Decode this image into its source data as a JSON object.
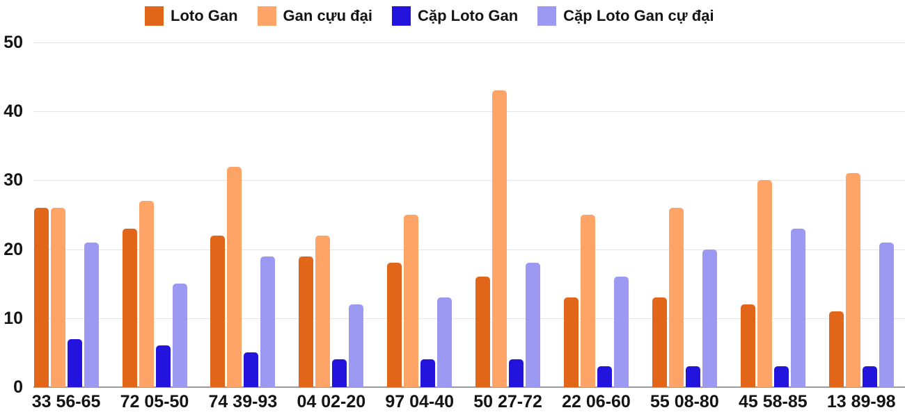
{
  "chart_data": {
    "type": "bar",
    "title": "",
    "xlabel": "",
    "ylabel": "",
    "ylim": [
      0,
      50
    ],
    "yticks": [
      0,
      10,
      20,
      30,
      40,
      50
    ],
    "grid": true,
    "legend_position": "top",
    "categories": [
      "33 56-65",
      "72 05-50",
      "74 39-93",
      "04 02-20",
      "97 04-40",
      "50 27-72",
      "22 06-60",
      "55 08-80",
      "45 58-85",
      "13 89-98"
    ],
    "series": [
      {
        "name": "Loto Gan",
        "color": "#e2661a",
        "values": [
          26,
          23,
          22,
          19,
          18,
          16,
          13,
          13,
          12,
          11
        ]
      },
      {
        "name": "Gan cựu đại",
        "color": "#fda466",
        "values": [
          26,
          27,
          32,
          22,
          25,
          43,
          25,
          26,
          30,
          31
        ]
      },
      {
        "name": "Cặp Loto Gan",
        "color": "#2213dd",
        "values": [
          7,
          6,
          5,
          4,
          4,
          4,
          3,
          3,
          3,
          3
        ]
      },
      {
        "name": "Cặp Loto Gan cự đại",
        "color": "#9c99f3",
        "values": [
          21,
          15,
          19,
          12,
          13,
          18,
          16,
          20,
          23,
          21
        ]
      }
    ]
  },
  "colors": {
    "grid": "#e5e5e5",
    "baseline": "#9a9a9a",
    "text": "#141414",
    "background": "#ffffff"
  }
}
